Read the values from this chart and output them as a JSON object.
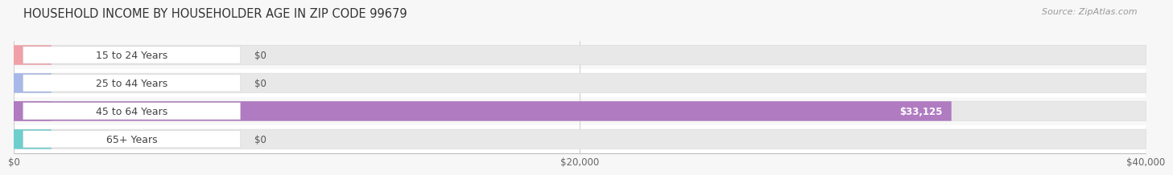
{
  "title": "HOUSEHOLD INCOME BY HOUSEHOLDER AGE IN ZIP CODE 99679",
  "source": "Source: ZipAtlas.com",
  "categories": [
    "15 to 24 Years",
    "25 to 44 Years",
    "45 to 64 Years",
    "65+ Years"
  ],
  "values": [
    0,
    0,
    33125,
    0
  ],
  "bar_colors": [
    "#f0a0a8",
    "#a8b8e8",
    "#b07bc0",
    "#6ecece"
  ],
  "value_labels": [
    "$0",
    "$0",
    "$33,125",
    "$0"
  ],
  "xlim": [
    0,
    40000
  ],
  "xtick_values": [
    0,
    20000,
    40000
  ],
  "xtick_labels": [
    "$0",
    "$20,000",
    "$40,000"
  ],
  "background_color": "#f7f7f7",
  "row_bg_odd": "#ffffff",
  "row_bg_even": "#efefef",
  "bar_track_color": "#e8e8e8",
  "title_fontsize": 10.5,
  "source_fontsize": 8,
  "label_fontsize": 9,
  "value_fontsize": 8.5
}
